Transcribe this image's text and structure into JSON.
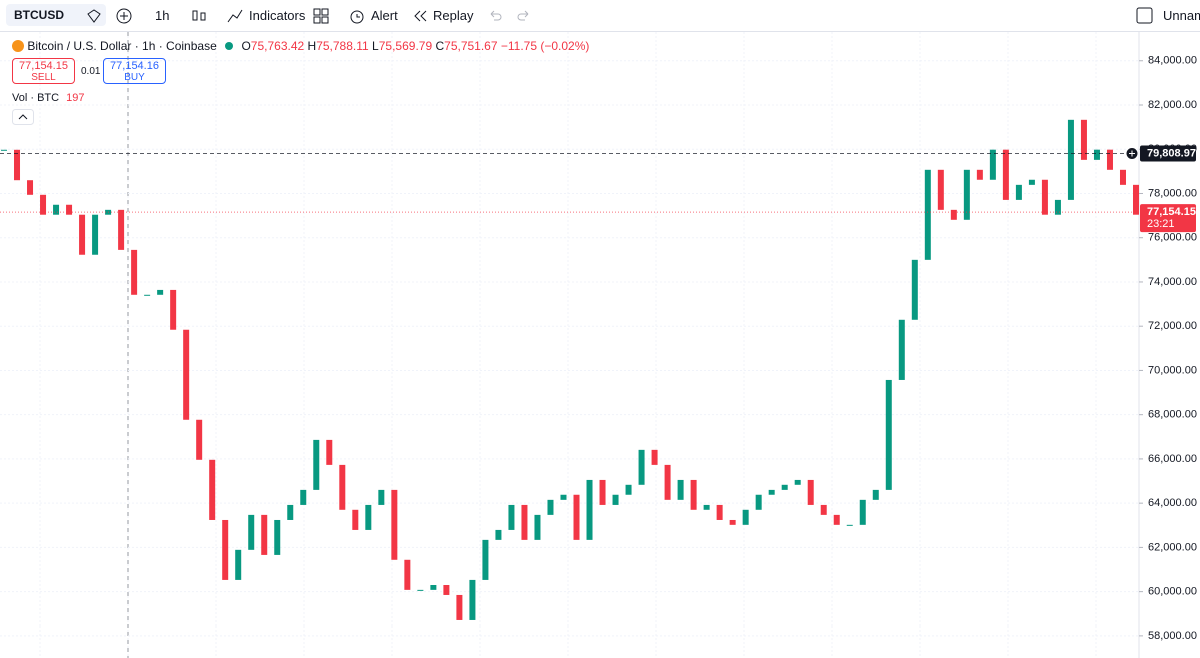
{
  "toolbar": {
    "symbol": "BTCUSD",
    "interval": "1h",
    "indicators": "Indicators",
    "alert": "Alert",
    "replay": "Replay",
    "layout_name": "Unname"
  },
  "legend": {
    "title": "Bitcoin / U.S. Dollar · 1h · Coinbase",
    "open": {
      "label": "O",
      "value": "75,763.42"
    },
    "high": {
      "label": "H",
      "value": "75,788.11"
    },
    "low": {
      "label": "L",
      "value": "75,569.79"
    },
    "close": {
      "label": "C",
      "value": "75,751.67"
    },
    "change": "−11.75 (−0.02%)"
  },
  "trade": {
    "sell_price": "77,154.15",
    "sell": "SELL",
    "spread": "0.01",
    "buy_price": "77,154.16",
    "buy": "BUY"
  },
  "volume_legend": {
    "label": "Vol · BTC",
    "value": "197"
  },
  "chart_data": {
    "type": "candlestick",
    "close": [
      79975,
      78600,
      77940,
      77040,
      77490,
      77040,
      75230,
      77040,
      77260,
      75450,
      73420,
      73420,
      73640,
      71840,
      67770,
      65960,
      63240,
      60530,
      61890,
      63470,
      61660,
      63240,
      63920,
      64600,
      66860,
      65730,
      63700,
      62790,
      63920,
      64600,
      61440,
      60080,
      60080,
      60300,
      59850,
      58720,
      60530,
      62340,
      62790,
      63920,
      62340,
      63470,
      64150,
      64380,
      62340,
      65050,
      63920,
      64380,
      64830,
      66410,
      65730,
      64150,
      65050,
      63700,
      63920,
      63240,
      63020,
      63700,
      64380,
      64600,
      64830,
      65050,
      63920,
      63470,
      63020,
      63020,
      64150,
      64600,
      69570,
      72290,
      75000,
      79070,
      77260,
      76810,
      79070,
      78620,
      79980,
      77710,
      78390,
      78620,
      77040,
      77710,
      81330,
      79520,
      79980,
      79070,
      78390,
      77040
    ],
    "ylim": [
      57000,
      85300
    ],
    "yticks": [
      {
        "value": 58000,
        "label": "58,000.00"
      },
      {
        "value": 60000,
        "label": "60,000.00"
      },
      {
        "value": 62000,
        "label": "62,000.00"
      },
      {
        "value": 64000,
        "label": "64,000.00"
      },
      {
        "value": 66000,
        "label": "66,000.00"
      },
      {
        "value": 68000,
        "label": "68,000.00"
      },
      {
        "value": 70000,
        "label": "70,000.00"
      },
      {
        "value": 72000,
        "label": "72,000.00"
      },
      {
        "value": 74000,
        "label": "74,000.00"
      },
      {
        "value": 76000,
        "label": "76,000.00"
      },
      {
        "value": 78000,
        "label": "78,000.00"
      },
      {
        "value": 80000,
        "label": "80,000.00"
      },
      {
        "value": 82000,
        "label": "82,000.00"
      },
      {
        "value": 84000,
        "label": "84,000.00"
      }
    ],
    "grid": true,
    "up_color": "#089981",
    "down_color": "#f23645",
    "lines": [
      {
        "value": 79808.97,
        "label": "79,808.97",
        "color": "#131722",
        "style": "dashed"
      },
      {
        "value": 77154.15,
        "label": "77,154.15",
        "sublabel": "23:21",
        "color": "#f23645",
        "style": "dotted"
      }
    ]
  }
}
